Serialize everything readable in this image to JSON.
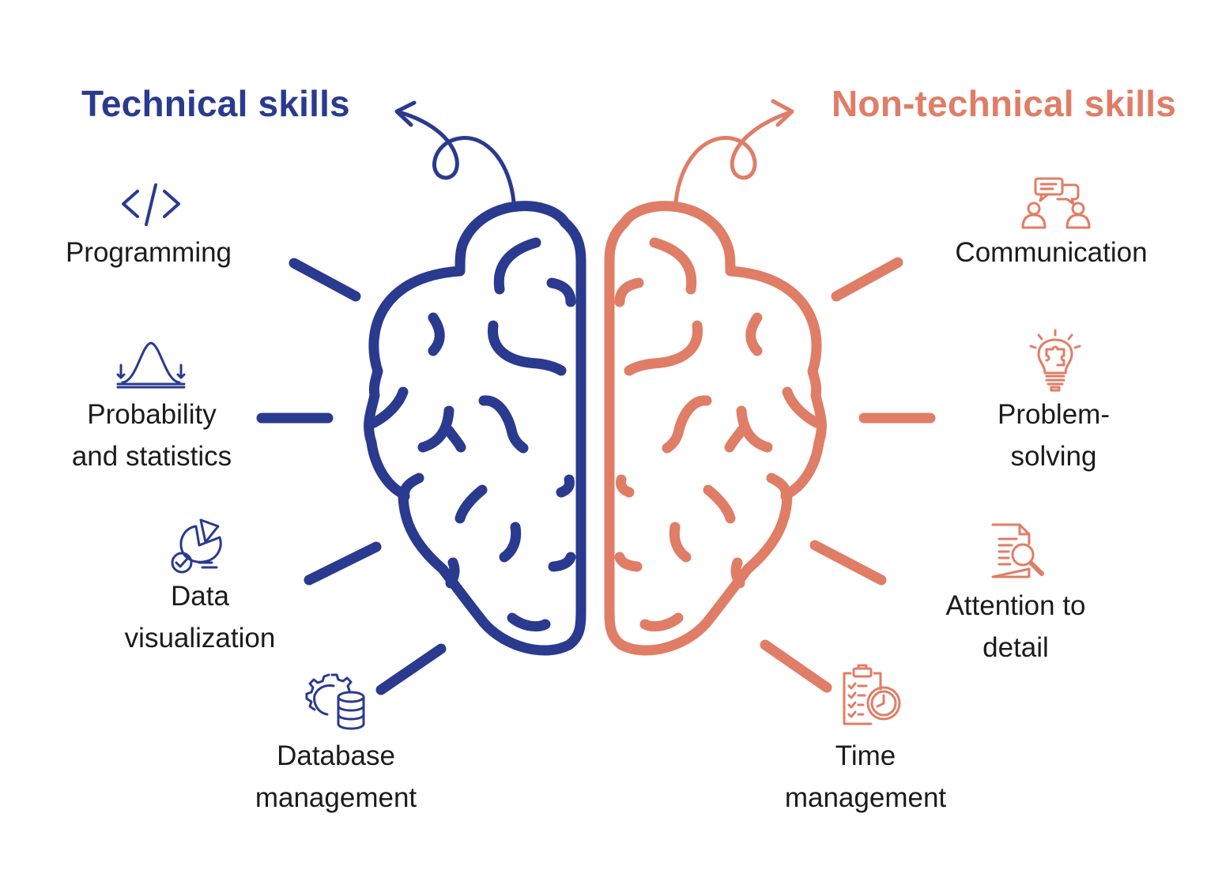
{
  "colors": {
    "technical": "#2a3a8f",
    "non_technical": "#e07d66",
    "text": "#1b1b1b",
    "background": "#ffffff"
  },
  "technical": {
    "title": "Technical skills",
    "skills": [
      {
        "lines": [
          "Programming"
        ],
        "icon": "code-icon"
      },
      {
        "lines": [
          "Probability",
          "and statistics"
        ],
        "icon": "bell-curve-icon"
      },
      {
        "lines": [
          "Data",
          "visualization"
        ],
        "icon": "pie-chart-icon"
      },
      {
        "lines": [
          "Database",
          "management"
        ],
        "icon": "database-gear-icon"
      }
    ]
  },
  "non_technical": {
    "title": "Non-technical skills",
    "skills": [
      {
        "lines": [
          "Communication"
        ],
        "icon": "people-chat-icon"
      },
      {
        "lines": [
          "Problem-",
          "solving"
        ],
        "icon": "lightbulb-puzzle-icon"
      },
      {
        "lines": [
          "Attention to",
          "detail"
        ],
        "icon": "document-magnifier-icon"
      },
      {
        "lines": [
          "Time",
          "management"
        ],
        "icon": "clipboard-clock-icon"
      }
    ]
  }
}
